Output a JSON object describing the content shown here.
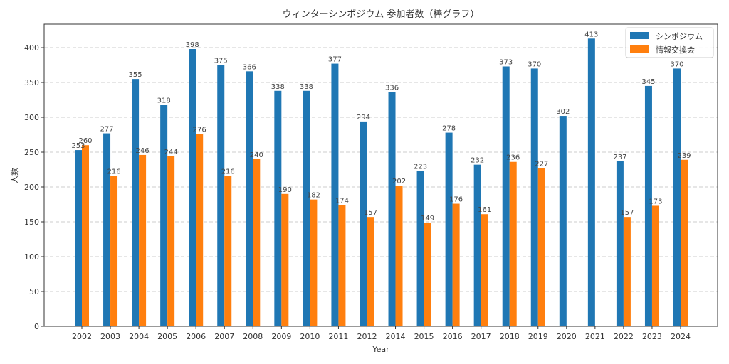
{
  "chart_data": {
    "type": "bar",
    "title": "ウィンターシンポジウム 参加者数（棒グラフ）",
    "xlabel": "Year",
    "ylabel": "人数",
    "ylim": [
      0,
      433.7
    ],
    "yticks": [
      0,
      50,
      100,
      150,
      200,
      250,
      300,
      350,
      400
    ],
    "grid": "y-dashed",
    "legend_position": "top-right",
    "categories": [
      "2002",
      "2003",
      "2004",
      "2005",
      "2006",
      "2007",
      "2008",
      "2009",
      "2010",
      "2011",
      "2012",
      "2014",
      "2015",
      "2016",
      "2017",
      "2018",
      "2019",
      "2020",
      "2021",
      "2022",
      "2023",
      "2024"
    ],
    "series": [
      {
        "name": "シンポジウム",
        "color": "#1f77b4",
        "values": [
          253,
          277,
          355,
          318,
          398,
          375,
          366,
          338,
          338,
          377,
          294,
          336,
          223,
          278,
          232,
          373,
          370,
          302,
          413,
          237,
          345,
          370
        ]
      },
      {
        "name": "情報交換会",
        "color": "#ff7f0e",
        "values": [
          260,
          216,
          246,
          244,
          276,
          216,
          240,
          190,
          182,
          174,
          157,
          202,
          149,
          176,
          161,
          236,
          227,
          null,
          null,
          157,
          173,
          239
        ]
      }
    ]
  }
}
